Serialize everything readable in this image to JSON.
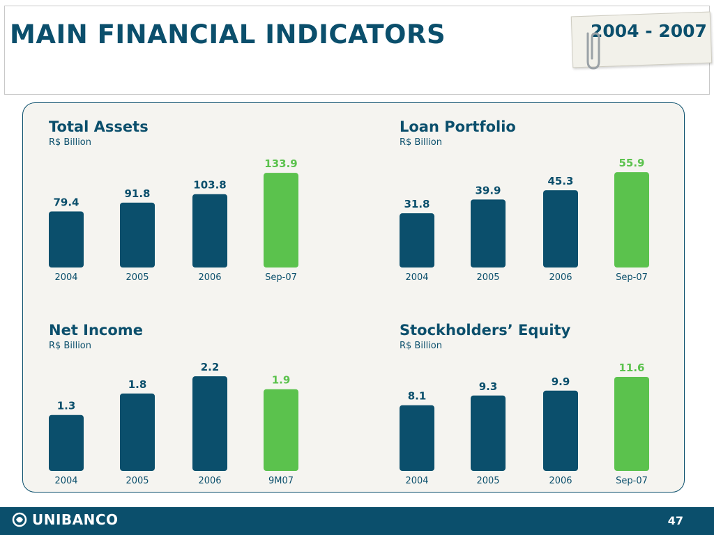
{
  "header": {
    "title": "MAIN FINANCIAL INDICATORS",
    "period": "2004 - 2007"
  },
  "colors": {
    "navy": "#0b4f6c",
    "green": "#5bc24d",
    "light_green": "#6dca5c",
    "panel": "#f5f4f0"
  },
  "icons": {
    "clip": "paperclip-icon",
    "logo": "unibanco-logo-icon"
  },
  "chart_data": [
    {
      "type": "bar",
      "title": "Total Assets",
      "ylabel": "R$ Billion",
      "categories": [
        "2004",
        "2005",
        "2006",
        "Sep-07"
      ],
      "values": [
        79.4,
        91.8,
        103.8,
        133.9
      ],
      "value_labels": [
        "79.4",
        "91.8",
        "103.8",
        "133.9"
      ],
      "highlight_last": true,
      "ylim": [
        0,
        140
      ]
    },
    {
      "type": "bar",
      "title": "Loan Portfolio",
      "ylabel": "R$ Billion",
      "categories": [
        "2004",
        "2005",
        "2006",
        "Sep-07"
      ],
      "values": [
        31.8,
        39.9,
        45.3,
        55.9
      ],
      "value_labels": [
        "31.8",
        "39.9",
        "45.3",
        "55.9"
      ],
      "highlight_last": true,
      "ylim": [
        0,
        58
      ]
    },
    {
      "type": "bar",
      "title": "Net Income",
      "ylabel": "R$ Billion",
      "categories": [
        "2004",
        "2005",
        "2006",
        "9M07"
      ],
      "values": [
        1.3,
        1.8,
        2.2,
        1.9
      ],
      "value_labels": [
        "1.3",
        "1.8",
        "2.2",
        "1.9"
      ],
      "highlight_last": true,
      "ylim": [
        0,
        2.3
      ]
    },
    {
      "type": "bar",
      "title": "Stockholders’ Equity",
      "ylabel": "R$ Billion",
      "categories": [
        "2004",
        "2005",
        "2006",
        "Sep-07"
      ],
      "values": [
        8.1,
        9.3,
        9.9,
        11.6
      ],
      "value_labels": [
        "8.1",
        "9.3",
        "9.9",
        "11.6"
      ],
      "highlight_last": true,
      "ylim": [
        0,
        12.2
      ]
    }
  ],
  "footer": {
    "brand": "UNIBANCO",
    "page_number": "47"
  }
}
